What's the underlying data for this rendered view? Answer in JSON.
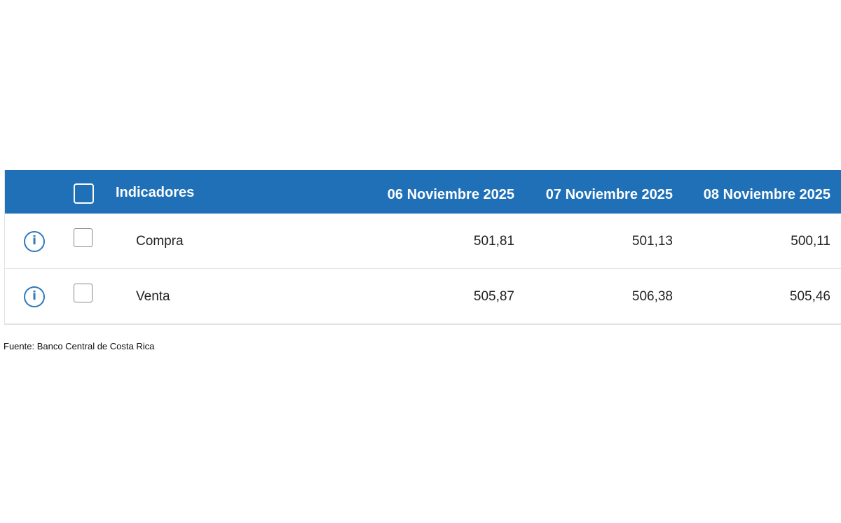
{
  "table": {
    "header": {
      "indicator_label": "Indicadores",
      "dates": [
        "06 Noviembre 2025",
        "07 Noviembre 2025",
        "08 Noviembre 2025"
      ]
    },
    "rows": [
      {
        "label": "Compra",
        "values": [
          "501,81",
          "501,13",
          "500,11"
        ]
      },
      {
        "label": "Venta",
        "values": [
          "505,87",
          "506,38",
          "505,46"
        ]
      }
    ]
  },
  "source": "Fuente: Banco Central de Costa Rica",
  "colors": {
    "header_bg": "#1f70b6",
    "info_icon": "#2f78bf"
  }
}
